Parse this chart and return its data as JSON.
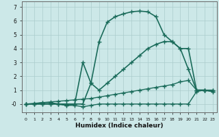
{
  "xlabel": "Humidex (Indice chaleur)",
  "background_color": "#cce8e8",
  "grid_color": "#aacccc",
  "line_color": "#1a6b5a",
  "xlim": [
    -0.5,
    23.5
  ],
  "ylim": [
    -0.6,
    7.4
  ],
  "xticks": [
    0,
    1,
    2,
    3,
    4,
    5,
    6,
    7,
    8,
    9,
    10,
    11,
    12,
    13,
    14,
    15,
    16,
    17,
    18,
    19,
    20,
    21,
    22,
    23
  ],
  "yticks": [
    0,
    1,
    2,
    3,
    4,
    5,
    6,
    7
  ],
  "series": [
    {
      "x": [
        0,
        1,
        2,
        3,
        4,
        5,
        6,
        7,
        8,
        9,
        10,
        11,
        12,
        13,
        14,
        15,
        16,
        17,
        18,
        19,
        20,
        21,
        22,
        23
      ],
      "y": [
        0,
        0,
        0,
        0,
        0,
        -0.1,
        -0.1,
        -0.2,
        -0.1,
        0,
        0,
        0,
        0,
        0,
        0,
        0,
        0,
        0,
        0,
        0,
        0,
        0.9,
        1.0,
        1.0
      ],
      "marker": "+",
      "markersize": 4,
      "lw": 1.0
    },
    {
      "x": [
        0,
        1,
        2,
        3,
        4,
        5,
        6,
        7,
        8,
        9,
        10,
        11,
        12,
        13,
        14,
        15,
        16,
        17,
        18,
        19,
        20,
        21,
        22,
        23
      ],
      "y": [
        0,
        0.05,
        0.1,
        0.15,
        0.2,
        0.25,
        0.3,
        0.35,
        0.4,
        0.5,
        0.6,
        0.7,
        0.8,
        0.9,
        1.0,
        1.1,
        1.2,
        1.3,
        1.4,
        1.6,
        1.7,
        1.0,
        1.0,
        1.0
      ],
      "marker": "+",
      "markersize": 4,
      "lw": 1.0
    },
    {
      "x": [
        0,
        1,
        2,
        3,
        4,
        5,
        6,
        7,
        8,
        9,
        10,
        11,
        12,
        13,
        14,
        15,
        16,
        17,
        18,
        19,
        20,
        21,
        22,
        23
      ],
      "y": [
        0,
        0,
        0,
        0,
        0,
        -0.1,
        0,
        0.0,
        1.5,
        4.5,
        5.9,
        6.3,
        6.5,
        6.65,
        6.7,
        6.65,
        6.3,
        5.0,
        4.5,
        4.0,
        2.5,
        1.0,
        1.0,
        0.9
      ],
      "marker": "+",
      "markersize": 4,
      "lw": 1.2
    },
    {
      "x": [
        0,
        1,
        2,
        3,
        4,
        5,
        6,
        7,
        8,
        9,
        10,
        11,
        12,
        13,
        14,
        15,
        16,
        17,
        18,
        19,
        20,
        21,
        22,
        23
      ],
      "y": [
        0,
        0,
        0.1,
        0.1,
        0.0,
        0.0,
        0.0,
        3.0,
        1.5,
        1.0,
        1.5,
        2.0,
        2.5,
        3.0,
        3.5,
        4.0,
        4.3,
        4.5,
        4.5,
        4.0,
        4.0,
        1.0,
        1.0,
        0.9
      ],
      "marker": "+",
      "markersize": 4,
      "lw": 1.2
    }
  ]
}
